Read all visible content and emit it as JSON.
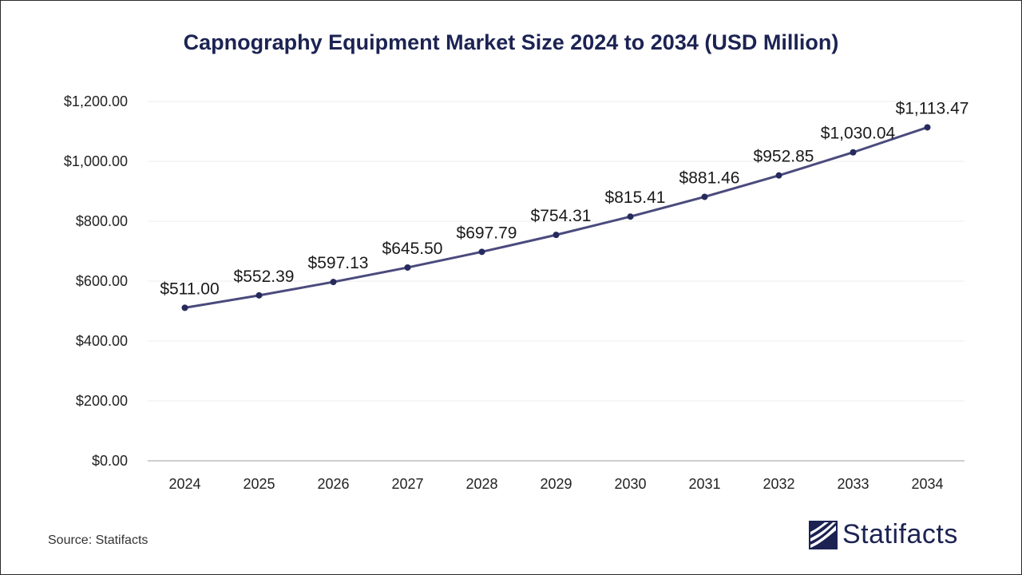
{
  "chart_data": {
    "type": "line",
    "title": "Capnography Equipment Market Size 2024 to 2034 (USD Million)",
    "categories": [
      "2024",
      "2025",
      "2026",
      "2027",
      "2028",
      "2029",
      "2030",
      "2031",
      "2032",
      "2033",
      "2034"
    ],
    "series": [
      {
        "values": [
          511.0,
          552.39,
          597.13,
          645.5,
          697.79,
          754.31,
          815.41,
          881.46,
          952.85,
          1030.04,
          1113.47
        ],
        "labels": [
          "$511.00",
          "$552.39",
          "$597.13",
          "$645.50",
          "$697.79",
          "$754.31",
          "$815.41",
          "$881.46",
          "$952.85",
          "$1,030.04",
          "$1,113.47"
        ]
      }
    ],
    "y_ticks": [
      0,
      200,
      400,
      600,
      800,
      1000,
      1200
    ],
    "y_tick_labels": [
      "$0.00",
      "$200.00",
      "$400.00",
      "$600.00",
      "$800.00",
      "$1,000.00",
      "$1,200.00"
    ],
    "ylim": [
      0,
      1200
    ],
    "grid": true,
    "legend": "none",
    "line_color": "#4a4a7d",
    "marker_color": "#262a5c"
  },
  "footer": {
    "source": "Source: Statifacts",
    "brand": "Statifacts",
    "brand_logo_icon": "statifacts-logo-icon"
  }
}
